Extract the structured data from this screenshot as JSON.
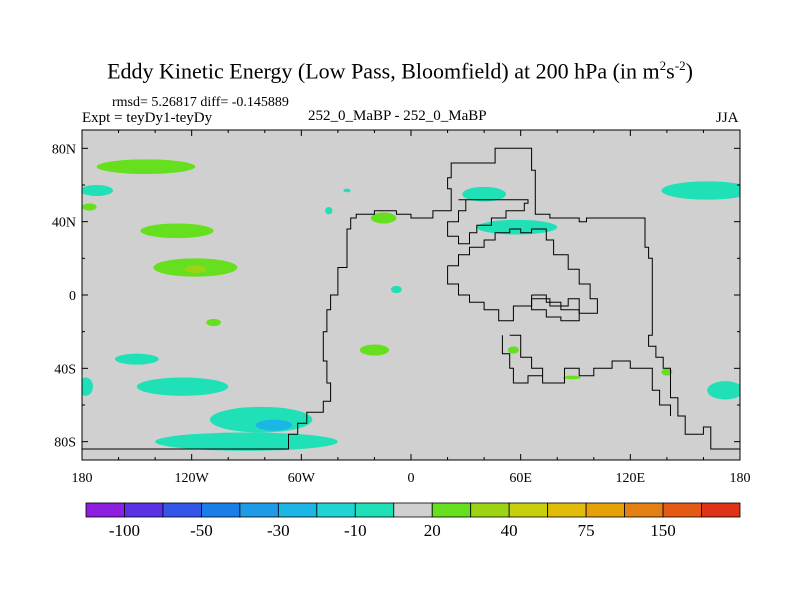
{
  "chart_data": {
    "type": "heatmap",
    "title_main": "Eddy Kinetic Energy (Low Pass, Bloomfield) at 200 hPa (in m",
    "title_sup1": "2",
    "title_mid": "s",
    "title_sup2": "-2",
    "title_end": ")",
    "stats": "rmsd= 5.26817 diff= -0.145889",
    "expt": "Expt = teyDy1-teyDy",
    "center_label": "252_0_MaBP - 252_0_MaBP",
    "season": "JJA",
    "xlim": [
      -180,
      180
    ],
    "ylim": [
      -90,
      90
    ],
    "x_ticks": [
      {
        "value": -180,
        "label": "180"
      },
      {
        "value": -120,
        "label": "120W"
      },
      {
        "value": -60,
        "label": "60W"
      },
      {
        "value": 0,
        "label": "0"
      },
      {
        "value": 60,
        "label": "60E"
      },
      {
        "value": 120,
        "label": "120E"
      },
      {
        "value": 180,
        "label": "180"
      }
    ],
    "y_ticks": [
      {
        "value": 80,
        "label": "80N"
      },
      {
        "value": 40,
        "label": "40N"
      },
      {
        "value": 0,
        "label": "0"
      },
      {
        "value": -40,
        "label": "40S"
      },
      {
        "value": -80,
        "label": "80S"
      }
    ],
    "background_color": "#d0d0d0",
    "colorbar": {
      "colors": [
        "#8c1fe0",
        "#5a32e6",
        "#3456e8",
        "#1a7ee8",
        "#1e9ae6",
        "#1bb6e6",
        "#20d4d6",
        "#20e0b8",
        "#d0d0d0",
        "#66e01e",
        "#9cd414",
        "#c8d00c",
        "#e2bc0a",
        "#e6a008",
        "#e48012",
        "#e45a14",
        "#e03216"
      ],
      "labels": [
        {
          "boundary": 1,
          "text": "-100"
        },
        {
          "boundary": 3,
          "text": "-50"
        },
        {
          "boundary": 5,
          "text": "-30"
        },
        {
          "boundary": 7,
          "text": "-10"
        },
        {
          "boundary": 9,
          "text": "20"
        },
        {
          "boundary": 11,
          "text": "40"
        },
        {
          "boundary": 13,
          "text": "75"
        },
        {
          "boundary": 15,
          "text": "150"
        }
      ]
    },
    "anomaly_regions": [
      {
        "name": "north-pacific-70n",
        "lon": -145,
        "lat": 70,
        "rlon": 27,
        "rlat": 4,
        "color": "#66e01e"
      },
      {
        "name": "west-edge-55n",
        "lon": -172,
        "lat": 57,
        "rlon": 9,
        "rlat": 3,
        "color": "#20e0b8"
      },
      {
        "name": "west-edge-48n",
        "lon": -176,
        "lat": 48,
        "rlon": 4,
        "rlat": 2,
        "color": "#66e01e"
      },
      {
        "name": "pacific-35n",
        "lon": -128,
        "lat": 35,
        "rlon": 20,
        "rlat": 4,
        "color": "#66e01e"
      },
      {
        "name": "pacific-15n",
        "lon": -118,
        "lat": 15,
        "rlon": 23,
        "rlat": 5,
        "color": "#66e01e"
      },
      {
        "name": "pacific-15n-core",
        "lon": -118,
        "lat": 14,
        "rlon": 6,
        "rlat": 2,
        "color": "#9cd414"
      },
      {
        "name": "small-55n",
        "lon": -35,
        "lat": 57,
        "rlon": 2,
        "rlat": 1,
        "color": "#20e0b8"
      },
      {
        "name": "small-45n",
        "lon": -45,
        "lat": 46,
        "rlon": 2,
        "rlat": 2,
        "color": "#20e0b8"
      },
      {
        "name": "atlantic-42n",
        "lon": -15,
        "lat": 42,
        "rlon": 7,
        "rlat": 3,
        "color": "#66e01e"
      },
      {
        "name": "small-eq",
        "lon": -8,
        "lat": 3,
        "rlon": 3,
        "rlat": 2,
        "color": "#20e0b8"
      },
      {
        "name": "small-15s",
        "lon": -108,
        "lat": -15,
        "rlon": 4,
        "rlat": 2,
        "color": "#66e01e"
      },
      {
        "name": "atlantic-30s",
        "lon": -20,
        "lat": -30,
        "rlon": 8,
        "rlat": 3,
        "color": "#66e01e"
      },
      {
        "name": "south-pacific-35s",
        "lon": -150,
        "lat": -35,
        "rlon": 12,
        "rlat": 3,
        "color": "#20e0b8"
      },
      {
        "name": "south-pacific-50s",
        "lon": -125,
        "lat": -50,
        "rlon": 25,
        "rlat": 5,
        "color": "#20e0b8"
      },
      {
        "name": "south-pacific-65s",
        "lon": -82,
        "lat": -68,
        "rlon": 28,
        "rlat": 7,
        "color": "#20e0b8"
      },
      {
        "name": "south-pacific-80s",
        "lon": -90,
        "lat": -80,
        "rlon": 50,
        "rlat": 5,
        "color": "#20e0b8"
      },
      {
        "name": "south-pacific-70s-core",
        "lon": -75,
        "lat": -71,
        "rlon": 10,
        "rlat": 3,
        "color": "#1bb6e6"
      },
      {
        "name": "west-edge-50s",
        "lon": -178,
        "lat": -50,
        "rlon": 4,
        "rlat": 5,
        "color": "#20e0b8"
      },
      {
        "name": "east-edge-50s",
        "lon": 172,
        "lat": -52,
        "rlon": 10,
        "rlat": 5,
        "color": "#20e0b8"
      },
      {
        "name": "east-edge-55n",
        "lon": 162,
        "lat": 57,
        "rlon": 25,
        "rlat": 5,
        "color": "#20e0b8"
      },
      {
        "name": "asia-55n",
        "lon": 40,
        "lat": 55,
        "rlon": 12,
        "rlat": 4,
        "color": "#20e0b8"
      },
      {
        "name": "asia-38n",
        "lon": 58,
        "lat": 37,
        "rlon": 22,
        "rlat": 4,
        "color": "#20e0b8"
      },
      {
        "name": "australia-30s",
        "lon": 56,
        "lat": -30,
        "rlon": 3,
        "rlat": 2,
        "color": "#66e01e"
      },
      {
        "name": "indian-45s",
        "lon": 88,
        "lat": -45,
        "rlon": 5,
        "rlat": 1,
        "color": "#66e01e"
      },
      {
        "name": "pacific-42s",
        "lon": 140,
        "lat": -42,
        "rlon": 3,
        "rlat": 2,
        "color": "#66e01e"
      }
    ],
    "boundary_lines": [
      {
        "name": "continent-left",
        "points": [
          [
            -180,
            -84
          ],
          [
            -67,
            -84
          ],
          [
            -67,
            -76
          ],
          [
            -62,
            -76
          ],
          [
            -62,
            -70
          ],
          [
            -57,
            -70
          ],
          [
            -57,
            -64
          ],
          [
            -48,
            -64
          ],
          [
            -48,
            -58
          ],
          [
            -44,
            -58
          ],
          [
            -44,
            -48
          ],
          [
            -46,
            -48
          ],
          [
            -46,
            -36
          ],
          [
            -48,
            -36
          ],
          [
            -48,
            -20
          ],
          [
            -46,
            -20
          ],
          [
            -46,
            -8
          ],
          [
            -44,
            -8
          ],
          [
            -44,
            0
          ],
          [
            -40,
            0
          ],
          [
            -40,
            15
          ],
          [
            -35,
            15
          ],
          [
            -35,
            36
          ],
          [
            -33,
            36
          ],
          [
            -33,
            42
          ],
          [
            -30,
            42
          ],
          [
            -30,
            44
          ],
          [
            -20,
            44
          ],
          [
            -20,
            46
          ],
          [
            -8,
            46
          ],
          [
            -8,
            44
          ],
          [
            0,
            44
          ],
          [
            0,
            42
          ],
          [
            12,
            42
          ],
          [
            12,
            46
          ],
          [
            22,
            46
          ],
          [
            22,
            58
          ],
          [
            20,
            58
          ],
          [
            20,
            64
          ],
          [
            22,
            64
          ],
          [
            22,
            72
          ],
          [
            46,
            72
          ],
          [
            46,
            80
          ],
          [
            66,
            80
          ],
          [
            66,
            68
          ],
          [
            68,
            68
          ],
          [
            68,
            44
          ],
          [
            76,
            44
          ],
          [
            76,
            42
          ],
          [
            92,
            42
          ],
          [
            92,
            40
          ],
          [
            96,
            40
          ],
          [
            96,
            42
          ],
          [
            128,
            42
          ],
          [
            128,
            26
          ],
          [
            130,
            26
          ],
          [
            130,
            20
          ],
          [
            132,
            20
          ],
          [
            132,
            -22
          ],
          [
            130,
            -22
          ],
          [
            130,
            -28
          ],
          [
            134,
            -28
          ],
          [
            134,
            -34
          ],
          [
            138,
            -34
          ],
          [
            138,
            -40
          ],
          [
            142,
            -40
          ],
          [
            142,
            -56
          ],
          [
            146,
            -56
          ],
          [
            146,
            -66
          ],
          [
            150,
            -66
          ],
          [
            150,
            -76
          ],
          [
            160,
            -76
          ],
          [
            160,
            -72
          ],
          [
            164,
            -72
          ],
          [
            164,
            -84
          ],
          [
            180,
            -84
          ]
        ]
      },
      {
        "name": "inner-loop",
        "points": [
          [
            26,
            52
          ],
          [
            30,
            52
          ],
          [
            30,
            46
          ],
          [
            26,
            46
          ],
          [
            26,
            40
          ],
          [
            20,
            40
          ],
          [
            20,
            32
          ],
          [
            26,
            32
          ],
          [
            26,
            28
          ],
          [
            32,
            28
          ],
          [
            32,
            34
          ],
          [
            36,
            34
          ],
          [
            36,
            38
          ],
          [
            44,
            38
          ],
          [
            44,
            42
          ],
          [
            52,
            42
          ],
          [
            52,
            46
          ],
          [
            62,
            46
          ],
          [
            62,
            50
          ],
          [
            64,
            50
          ],
          [
            64,
            52
          ],
          [
            26,
            52
          ]
        ]
      },
      {
        "name": "sea-loop",
        "points": [
          [
            20,
            16
          ],
          [
            26,
            16
          ],
          [
            26,
            22
          ],
          [
            32,
            22
          ],
          [
            32,
            26
          ],
          [
            40,
            26
          ],
          [
            40,
            30
          ],
          [
            46,
            30
          ],
          [
            46,
            34
          ],
          [
            54,
            34
          ],
          [
            54,
            36
          ],
          [
            60,
            36
          ],
          [
            60,
            34
          ],
          [
            66,
            34
          ],
          [
            66,
            36
          ],
          [
            74,
            36
          ],
          [
            74,
            30
          ],
          [
            78,
            30
          ],
          [
            78,
            22
          ],
          [
            86,
            22
          ],
          [
            86,
            14
          ],
          [
            92,
            14
          ],
          [
            92,
            6
          ],
          [
            98,
            6
          ],
          [
            98,
            -2
          ],
          [
            102,
            -2
          ],
          [
            102,
            -10
          ],
          [
            92,
            -10
          ],
          [
            92,
            -2
          ],
          [
            86,
            -2
          ],
          [
            86,
            -6
          ],
          [
            76,
            -6
          ],
          [
            76,
            -2
          ],
          [
            66,
            -2
          ],
          [
            66,
            -6
          ],
          [
            56,
            -6
          ],
          [
            56,
            -14
          ],
          [
            48,
            -14
          ],
          [
            48,
            -8
          ],
          [
            40,
            -8
          ],
          [
            40,
            -4
          ],
          [
            32,
            -4
          ],
          [
            32,
            0
          ],
          [
            26,
            0
          ],
          [
            26,
            6
          ],
          [
            20,
            6
          ],
          [
            20,
            16
          ]
        ]
      },
      {
        "name": "peninsula-loop",
        "points": [
          [
            66,
            0
          ],
          [
            74,
            0
          ],
          [
            74,
            -4
          ],
          [
            82,
            -4
          ],
          [
            82,
            -8
          ],
          [
            92,
            -8
          ],
          [
            92,
            -14
          ],
          [
            82,
            -14
          ],
          [
            82,
            -12
          ],
          [
            74,
            -12
          ],
          [
            74,
            -8
          ],
          [
            66,
            -8
          ],
          [
            66,
            0
          ]
        ]
      },
      {
        "name": "continent-right",
        "points": [
          [
            54,
            -22
          ],
          [
            60,
            -22
          ],
          [
            60,
            -34
          ],
          [
            66,
            -34
          ],
          [
            66,
            -40
          ],
          [
            72,
            -40
          ],
          [
            72,
            -48
          ],
          [
            84,
            -48
          ],
          [
            84,
            -40
          ],
          [
            92,
            -40
          ],
          [
            92,
            -44
          ],
          [
            100,
            -44
          ],
          [
            100,
            -40
          ],
          [
            110,
            -40
          ],
          [
            110,
            -36
          ],
          [
            120,
            -36
          ],
          [
            120,
            -40
          ],
          [
            132,
            -40
          ],
          [
            132,
            -52
          ],
          [
            136,
            -52
          ],
          [
            136,
            -60
          ],
          [
            142,
            -60
          ],
          [
            142,
            -66
          ]
        ]
      },
      {
        "name": "south-hook",
        "points": [
          [
            50,
            -22
          ],
          [
            50,
            -32
          ],
          [
            54,
            -32
          ],
          [
            54,
            -40
          ],
          [
            56,
            -40
          ],
          [
            56,
            -48
          ],
          [
            64,
            -48
          ],
          [
            64,
            -44
          ],
          [
            72,
            -44
          ]
        ]
      }
    ]
  }
}
